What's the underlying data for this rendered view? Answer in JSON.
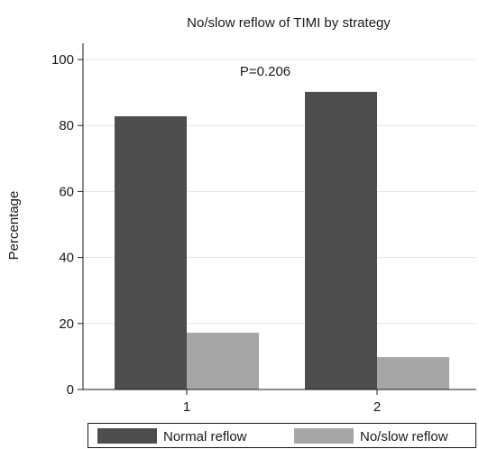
{
  "chart_data": {
    "type": "bar",
    "title": "No/slow reflow of TIMI by strategy",
    "xlabel": "",
    "ylabel": "Percentage",
    "categories": [
      "1",
      "2"
    ],
    "series": [
      {
        "name": "Normal reflow",
        "values": [
          82.8,
          90.2
        ]
      },
      {
        "name": "No/slow reflow",
        "values": [
          17.2,
          9.8
        ]
      }
    ],
    "ylim": [
      0,
      100
    ],
    "yticks": [
      0,
      20,
      40,
      60,
      80,
      100
    ],
    "annotation": "P=0.206",
    "grid": true,
    "legend_position": "bottom",
    "colors": {
      "Normal reflow": "#4d4d4d",
      "No/slow reflow": "#a6a6a6",
      "grid": "#d9e6ec"
    }
  }
}
